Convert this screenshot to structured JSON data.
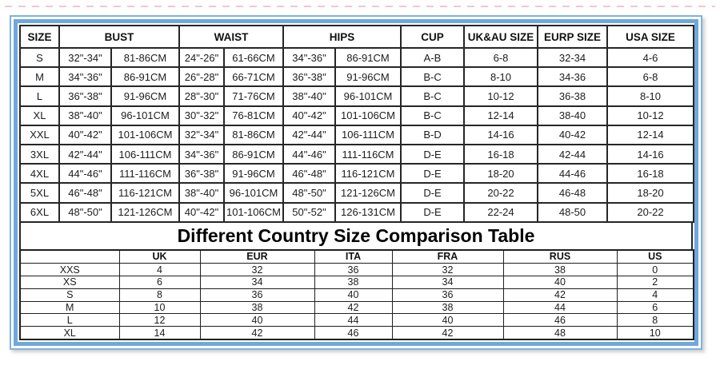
{
  "accent": {
    "frame_blue": "#6fa8dc",
    "table_border": "#262626",
    "text_color": "#1c1c1c"
  },
  "size_table": {
    "headers": {
      "size": "SIZE",
      "bust": "BUST",
      "waist": "WAIST",
      "hips": "HIPS",
      "cup": "CUP",
      "uk_au": "UK&AU SIZE",
      "eurp": "EURP SIZE",
      "usa": "USA SIZE"
    },
    "rows": [
      [
        "S",
        "32\"-34\"",
        "81-86CM",
        "24\"-26\"",
        "61-66CM",
        "34\"-36\"",
        "86-91CM",
        "A-B",
        "6-8",
        "32-34",
        "4-6"
      ],
      [
        "M",
        "34\"-36\"",
        "86-91CM",
        "26\"-28\"",
        "66-71CM",
        "36\"-38\"",
        "91-96CM",
        "B-C",
        "8-10",
        "34-36",
        "6-8"
      ],
      [
        "L",
        "36\"-38\"",
        "91-96CM",
        "28\"-30\"",
        "71-76CM",
        "38\"-40\"",
        "96-101CM",
        "B-C",
        "10-12",
        "36-38",
        "8-10"
      ],
      [
        "XL",
        "38\"-40\"",
        "96-101CM",
        "30\"-32\"",
        "76-81CM",
        "40\"-42\"",
        "101-106CM",
        "B-C",
        "12-14",
        "38-40",
        "10-12"
      ],
      [
        "XXL",
        "40\"-42\"",
        "101-106CM",
        "32\"-34\"",
        "81-86CM",
        "42\"-44\"",
        "106-111CM",
        "B-D",
        "14-16",
        "40-42",
        "12-14"
      ],
      [
        "3XL",
        "42\"-44\"",
        "106-111CM",
        "34\"-36\"",
        "86-91CM",
        "44\"-46\"",
        "111-116CM",
        "D-E",
        "16-18",
        "42-44",
        "14-16"
      ],
      [
        "4XL",
        "44\"-46\"",
        "111-116CM",
        "36\"-38\"",
        "91-96CM",
        "46\"-48\"",
        "116-121CM",
        "D-E",
        "18-20",
        "44-46",
        "16-18"
      ],
      [
        "5XL",
        "46\"-48\"",
        "116-121CM",
        "38\"-40\"",
        "96-101CM",
        "48\"-50\"",
        "121-126CM",
        "D-E",
        "20-22",
        "46-48",
        "18-20"
      ],
      [
        "6XL",
        "48\"-50\"",
        "121-126CM",
        "40\"-42\"",
        "101-106CM",
        "50\"-52\"",
        "126-131CM",
        "D-E",
        "22-24",
        "48-50",
        "20-22"
      ]
    ]
  },
  "comparison": {
    "title": "Different Country Size Comparison Table",
    "headers": [
      "",
      "UK",
      "EUR",
      "ITA",
      "FRA",
      "RUS",
      "US"
    ],
    "rows": [
      [
        "XXS",
        "4",
        "32",
        "36",
        "32",
        "38",
        "0"
      ],
      [
        "XS",
        "6",
        "34",
        "38",
        "34",
        "40",
        "2"
      ],
      [
        "S",
        "8",
        "36",
        "40",
        "36",
        "42",
        "4"
      ],
      [
        "M",
        "10",
        "38",
        "42",
        "38",
        "44",
        "6"
      ],
      [
        "L",
        "12",
        "40",
        "44",
        "40",
        "46",
        "8"
      ],
      [
        "XL",
        "14",
        "42",
        "46",
        "42",
        "48",
        "10"
      ]
    ]
  }
}
